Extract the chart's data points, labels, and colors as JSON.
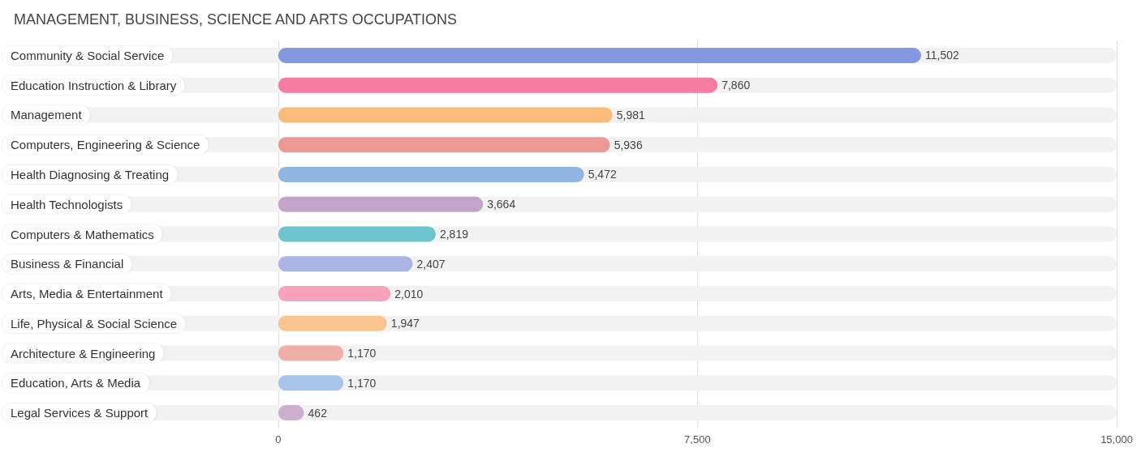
{
  "chart_data": {
    "type": "bar",
    "orientation": "horizontal",
    "title": "MANAGEMENT, BUSINESS, SCIENCE AND ARTS OCCUPATIONS",
    "categories": [
      "Community & Social Service",
      "Education Instruction & Library",
      "Management",
      "Computers, Engineering & Science",
      "Health Diagnosing & Treating",
      "Health Technologists",
      "Computers & Mathematics",
      "Business & Financial",
      "Arts, Media & Entertainment",
      "Life, Physical & Social Science",
      "Architecture & Engineering",
      "Education, Arts & Media",
      "Legal Services & Support"
    ],
    "values": [
      11502,
      7860,
      5981,
      5936,
      5472,
      3664,
      2819,
      2407,
      2010,
      1947,
      1170,
      1170,
      462
    ],
    "colors": [
      "#8498e0",
      "#f47ca3",
      "#f9bb7a",
      "#ea9a92",
      "#8fb5e5",
      "#c3a3c9",
      "#6fc5cc",
      "#aab5e6",
      "#f6a2bd",
      "#f9c48f",
      "#f0aea8",
      "#a6c4ec",
      "#cdb0d0"
    ],
    "value_labels": [
      "11,502",
      "7,860",
      "5,981",
      "5,936",
      "5,472",
      "3,664",
      "2,819",
      "2,407",
      "2,010",
      "1,947",
      "1,170",
      "1,170",
      "462"
    ],
    "xlim": [
      -4700,
      15000
    ],
    "xticks": [
      0,
      {
        "value": 7500,
        "label": "7,500"
      },
      {
        "value": 15000,
        "label": "15,000"
      }
    ],
    "grid": "x"
  }
}
